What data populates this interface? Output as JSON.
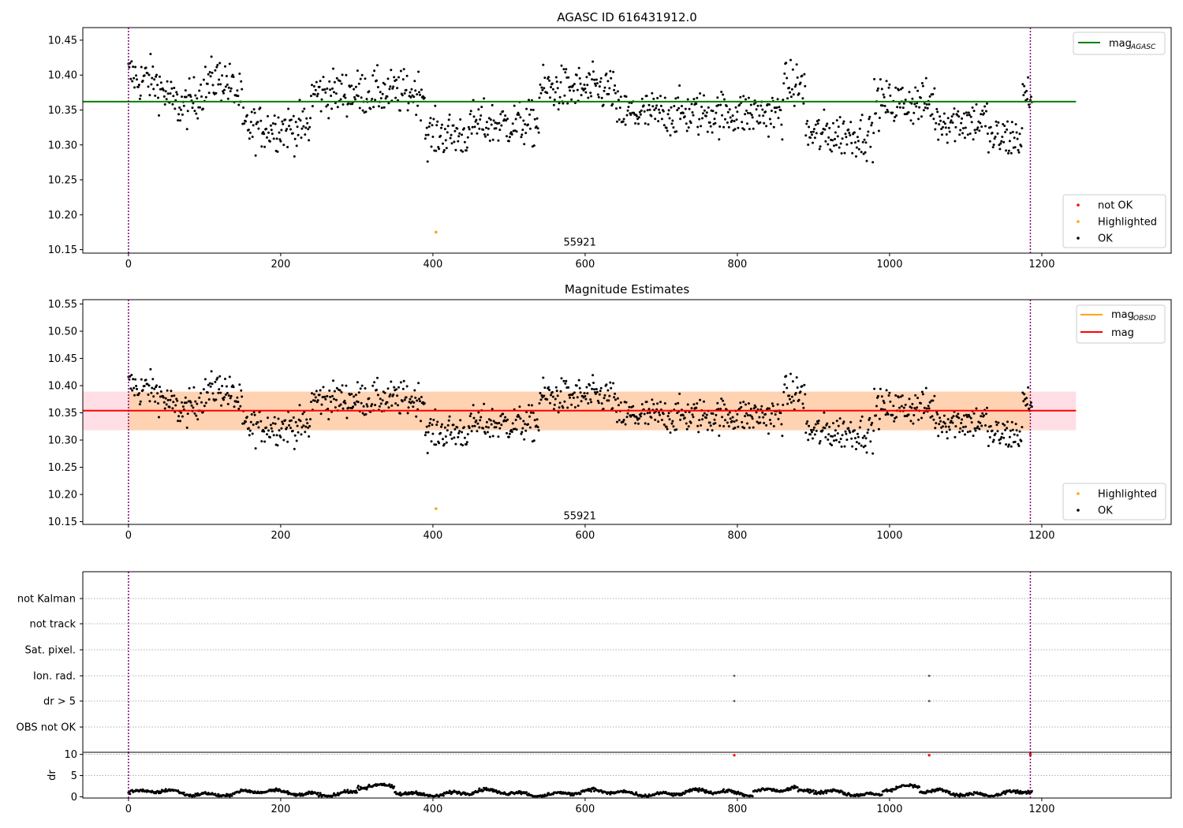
{
  "chart_data": [
    {
      "type": "scatter",
      "title": "AGASC ID 616431912.0",
      "xlim": [
        -60,
        1370
      ],
      "ylim": [
        10.145,
        10.468
      ],
      "xticks": [
        "0",
        "200",
        "400",
        "600",
        "800",
        "1000",
        "1200"
      ],
      "yticks": [
        "10.15",
        "10.20",
        "10.25",
        "10.30",
        "10.35",
        "10.40",
        "10.45"
      ],
      "vlines": [
        0,
        1185
      ],
      "hline": {
        "y": 10.362,
        "x_range": [
          -60,
          1245
        ],
        "color": "#008000"
      },
      "annotation": {
        "text": "55921",
        "x": 593,
        "y": 10.16
      },
      "highlighted_points": [
        [
          404,
          10.175
        ]
      ],
      "legend_lines": [
        {
          "main": "mag",
          "sub": "AGASC",
          "color": "#008000"
        }
      ],
      "legend_points": [
        {
          "label": "not OK",
          "color": "#ff0000"
        },
        {
          "label": "Highlighted",
          "color": "#ffa500"
        },
        {
          "label": "OK",
          "color": "#000000"
        }
      ]
    },
    {
      "type": "scatter",
      "title": "Magnitude Estimates",
      "xlim": [
        -60,
        1370
      ],
      "ylim": [
        10.145,
        10.558
      ],
      "xticks": [
        "0",
        "200",
        "400",
        "600",
        "800",
        "1000",
        "1200"
      ],
      "yticks": [
        "10.15",
        "10.20",
        "10.25",
        "10.30",
        "10.35",
        "10.40",
        "10.45",
        "10.50",
        "10.55"
      ],
      "vlines": [
        0,
        1185
      ],
      "hline": {
        "y": 10.354,
        "x_range": [
          -60,
          1245
        ],
        "color": "#ff0000"
      },
      "band": {
        "y_low": 10.318,
        "y_high": 10.389,
        "x_range": [
          -60,
          1245
        ]
      },
      "annotation": {
        "text": "55921",
        "x": 593,
        "y": 10.16
      },
      "highlighted_points": [
        [
          404,
          10.174
        ]
      ],
      "legend_lines": [
        {
          "main": "mag",
          "sub": "OBSID",
          "color": "#ffa500"
        },
        {
          "main": "mag",
          "sub": "",
          "color": "#ff0000"
        }
      ],
      "legend_points": [
        {
          "label": "Highlighted",
          "color": "#ffa500"
        },
        {
          "label": "OK",
          "color": "#000000"
        }
      ]
    },
    {
      "type": "scatter",
      "xlim": [
        -60,
        1370
      ],
      "categories": [
        "not Kalman",
        "not track",
        "Sat. pixel.",
        "Ion. rad.",
        "dr > 5",
        "OBS not OK"
      ],
      "flag_points": [
        {
          "category": "Ion. rad.",
          "x": [
            796,
            1052
          ]
        },
        {
          "category": "dr > 5",
          "x": [
            796,
            1052
          ]
        }
      ],
      "vlines": [
        0,
        1185
      ]
    },
    {
      "type": "scatter",
      "ylabel": "dr",
      "xlim": [
        -60,
        1370
      ],
      "ylim": [
        -0.3,
        10.5
      ],
      "xticks": [
        "0",
        "200",
        "400",
        "600",
        "800",
        "1000",
        "1200"
      ],
      "yticks": [
        "0",
        "5",
        "10"
      ],
      "vlines": [
        0,
        1185
      ],
      "red_points": [
        [
          796,
          9.8
        ],
        [
          1052,
          9.8
        ],
        [
          1185,
          9.8
        ],
        [
          1185,
          10.1
        ]
      ]
    }
  ]
}
